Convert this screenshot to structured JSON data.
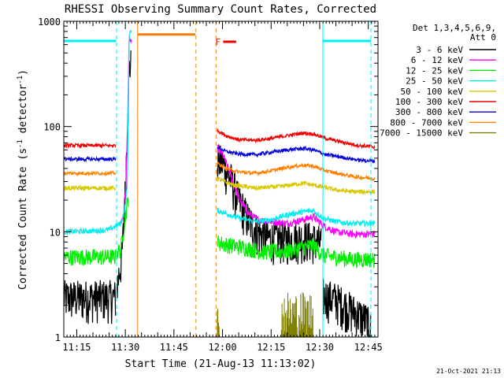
{
  "chart_data": {
    "type": "line",
    "title": "RHESSI Observing Summary Count Rates, Corrected",
    "xlabel": "Start Time (21-Aug-13 11:13:02)",
    "ylabel_main": "Corrected Count Rate (s",
    "ylabel_sup1": "-1",
    "ylabel_mid": " detector",
    "ylabel_sup2": "-1",
    "ylabel_end": ")",
    "yscale": "log",
    "ylim": [
      1,
      1000
    ],
    "xlim_minutes": [
      11.0,
      108.0
    ],
    "x_ticks": [
      {
        "min": 15,
        "label": "11:15"
      },
      {
        "min": 30,
        "label": "11:30"
      },
      {
        "min": 45,
        "label": "11:45"
      },
      {
        "min": 60,
        "label": "12:00"
      },
      {
        "min": 75,
        "label": "12:15"
      },
      {
        "min": 90,
        "label": "12:30"
      },
      {
        "min": 105,
        "label": "12:45"
      }
    ],
    "y_ticks": [
      {
        "v": 1,
        "label": "1"
      },
      {
        "v": 10,
        "label": "10"
      },
      {
        "v": 100,
        "label": "100"
      },
      {
        "v": 1000,
        "label": "1000"
      }
    ],
    "legend": {
      "header1": "Det 1,3,4,5,6,9,",
      "header2": "Att 0",
      "placement": "right",
      "entries": [
        {
          "label": "3 - 6 keV",
          "color": "#000000"
        },
        {
          "label": "6 - 12 keV",
          "color": "#ff00ff"
        },
        {
          "label": "12 - 25 keV",
          "color": "#00ee00"
        },
        {
          "label": "25 - 50 keV",
          "color": "#00eeee"
        },
        {
          "label": "50 - 100 keV",
          "color": "#d8c800"
        },
        {
          "label": "100 - 300 keV",
          "color": "#ee0000"
        },
        {
          "label": "300 - 800 keV",
          "color": "#0000dd"
        },
        {
          "label": "800 - 7000 keV",
          "color": "#ff8000"
        },
        {
          "label": "7000 - 15000 keV",
          "color": "#808000"
        }
      ]
    },
    "flag": {
      "label": "F",
      "color": "#ee0000",
      "x_start_min": 60.2,
      "x_end_min": 64.2,
      "level": 650
    },
    "attenuator_bars": [
      {
        "x_start_min": 11.0,
        "x_end_min": 27.2,
        "level": 650,
        "color": "#00eeee"
      },
      {
        "x_start_min": 33.8,
        "x_end_min": 51.6,
        "level": 750,
        "color": "#ff8000"
      },
      {
        "x_start_min": 91.0,
        "x_end_min": 105.8,
        "level": 650,
        "color": "#00eeee"
      }
    ],
    "vertical_markers": [
      {
        "min": 11.0,
        "color": "#00eeee",
        "style": "solid"
      },
      {
        "min": 27.3,
        "color": "#00eeee",
        "style": "dashed"
      },
      {
        "min": 33.8,
        "color": "#ff8000",
        "style": "solid"
      },
      {
        "min": 51.8,
        "color": "#ff8000",
        "style": "dashed"
      },
      {
        "min": 58.0,
        "color": "#ff8000",
        "style": "dashed"
      },
      {
        "min": 91.0,
        "color": "#00eeee",
        "style": "solid"
      },
      {
        "min": 105.8,
        "color": "#00eeee",
        "style": "dashed"
      }
    ],
    "series": [
      {
        "name": "3 - 6 keV",
        "color": "#000000",
        "noise": 0.45,
        "segments": [
          [
            [
              11.0,
              2.4
            ],
            [
              27.0,
              2.4
            ]
          ],
          [
            [
              27.4,
              3.0
            ],
            [
              29.0,
              6.0
            ],
            [
              30.0,
              25
            ],
            [
              30.6,
              100
            ],
            [
              31.3,
              400
            ],
            [
              31.8,
              380
            ]
          ],
          [
            [
              58.4,
              48
            ],
            [
              60.0,
              45
            ],
            [
              62.5,
              32
            ],
            [
              65.0,
              20
            ],
            [
              68.0,
              13
            ],
            [
              71.0,
              10
            ],
            [
              74.0,
              8.8
            ],
            [
              80.0,
              8.5
            ],
            [
              85.0,
              8.8
            ],
            [
              88.0,
              8.5
            ],
            [
              90.5,
              7.8
            ]
          ],
          [
            [
              91.0,
              2.5
            ],
            [
              95.0,
              2.3
            ],
            [
              100.0,
              1.8
            ],
            [
              104.0,
              1.5
            ],
            [
              105.8,
              1.2
            ]
          ]
        ]
      },
      {
        "name": "6 - 12 keV",
        "color": "#ff00ff",
        "noise": 0.08,
        "segments": [
          [
            [
              28.4,
              12
            ],
            [
              29.4,
              14
            ],
            [
              30.2,
              30
            ],
            [
              30.8,
              150
            ],
            [
              31.2,
              700
            ],
            [
              31.9,
              620
            ]
          ],
          [
            [
              58.4,
              62
            ],
            [
              60.0,
              55
            ],
            [
              62.5,
              35
            ],
            [
              65.0,
              21
            ],
            [
              68.0,
              15
            ],
            [
              71.0,
              13
            ],
            [
              75.0,
              12.5
            ],
            [
              80.0,
              12.0
            ],
            [
              85.0,
              13.0
            ],
            [
              88.0,
              14.0
            ],
            [
              91.0,
              11.5
            ],
            [
              95.0,
              10.0
            ],
            [
              100.0,
              9.5
            ],
            [
              107.0,
              9.5
            ]
          ]
        ]
      },
      {
        "name": "12 - 25 keV",
        "color": "#00ee00",
        "noise": 0.18,
        "segments": [
          [
            [
              11.0,
              5.8
            ],
            [
              27.0,
              5.8
            ]
          ],
          [
            [
              27.3,
              6.4
            ],
            [
              28.6,
              6.8
            ],
            [
              30.0,
              14
            ],
            [
              31.0,
              22
            ]
          ],
          [
            [
              58.4,
              8.0
            ],
            [
              62.0,
              7.5
            ],
            [
              68.0,
              7.0
            ],
            [
              72.0,
              6.5
            ],
            [
              80.0,
              6.6
            ],
            [
              88.0,
              7.5
            ],
            [
              91.0,
              6.0
            ],
            [
              100.0,
              5.5
            ],
            [
              107.0,
              5.5
            ]
          ]
        ]
      },
      {
        "name": "25 - 50 keV",
        "color": "#00eeee",
        "noise": 0.06,
        "segments": [
          [
            [
              11.0,
              10.0
            ],
            [
              20.0,
              10.2
            ],
            [
              25.0,
              10.5
            ],
            [
              28.5,
              12
            ],
            [
              29.8,
              16
            ],
            [
              30.6,
              28
            ],
            [
              31.2,
              800
            ],
            [
              31.9,
              780
            ]
          ],
          [
            [
              58.4,
              16
            ],
            [
              61.0,
              15
            ],
            [
              65.0,
              13.5
            ],
            [
              70.0,
              12.5
            ],
            [
              75.0,
              13.0
            ],
            [
              80.0,
              14.5
            ],
            [
              85.0,
              15.5
            ],
            [
              88.0,
              16.0
            ],
            [
              91.0,
              13.5
            ],
            [
              95.0,
              12.5
            ],
            [
              100.0,
              12.0
            ],
            [
              107.0,
              12.0
            ]
          ]
        ]
      },
      {
        "name": "50 - 100 keV",
        "color": "#d8c800",
        "noise": 0.05,
        "segments": [
          [
            [
              11.0,
              26
            ],
            [
              27.0,
              26
            ]
          ],
          [
            [
              58.4,
              32
            ],
            [
              63.0,
              28
            ],
            [
              70.0,
              26
            ],
            [
              78.0,
              27
            ],
            [
              85.0,
              29
            ],
            [
              90.0,
              27
            ],
            [
              95.0,
              25
            ],
            [
              100.0,
              24
            ],
            [
              107.0,
              24
            ]
          ]
        ]
      },
      {
        "name": "100 - 300 keV",
        "color": "#ee0000",
        "noise": 0.04,
        "segments": [
          [
            [
              11.0,
              66
            ],
            [
              27.0,
              66
            ]
          ],
          [
            [
              58.4,
              92
            ],
            [
              61.0,
              82
            ],
            [
              65.0,
              75
            ],
            [
              70.0,
              74
            ],
            [
              75.0,
              77
            ],
            [
              80.0,
              82
            ],
            [
              85.0,
              87
            ],
            [
              88.0,
              85
            ],
            [
              92.0,
              77
            ],
            [
              97.0,
              71
            ],
            [
              102.0,
              66
            ],
            [
              107.0,
              64
            ]
          ]
        ]
      },
      {
        "name": "300 - 800 keV",
        "color": "#0000dd",
        "noise": 0.04,
        "segments": [
          [
            [
              11.0,
              49
            ],
            [
              27.0,
              49
            ]
          ],
          [
            [
              58.4,
              64
            ],
            [
              61.0,
              58
            ],
            [
              65.0,
              55
            ],
            [
              70.0,
              54
            ],
            [
              75.0,
              57
            ],
            [
              80.0,
              60
            ],
            [
              85.0,
              62
            ],
            [
              88.0,
              60
            ],
            [
              92.0,
              54
            ],
            [
              97.0,
              51
            ],
            [
              102.0,
              48
            ],
            [
              107.0,
              47
            ]
          ]
        ]
      },
      {
        "name": "800 - 7000 keV",
        "color": "#ff8000",
        "noise": 0.04,
        "segments": [
          [
            [
              11.0,
              36
            ],
            [
              27.0,
              36
            ]
          ],
          [
            [
              58.4,
              45
            ],
            [
              61.0,
              40
            ],
            [
              65.0,
              37
            ],
            [
              70.0,
              36
            ],
            [
              75.0,
              38
            ],
            [
              80.0,
              41
            ],
            [
              85.0,
              43
            ],
            [
              88.0,
              42
            ],
            [
              92.0,
              38
            ],
            [
              97.0,
              35
            ],
            [
              102.0,
              33
            ],
            [
              107.0,
              32
            ]
          ]
        ]
      }
    ],
    "spikes": [
      {
        "name": "7000 - 15000 keV",
        "color": "#808000",
        "base": 1.0,
        "x_ranges": [
          [
            58.4,
            59.0,
            2.1
          ],
          [
            78.0,
            88.0,
            2.8
          ]
        ]
      }
    ]
  },
  "footer": {
    "timestamp": "21-Oct-2021 21:13"
  }
}
